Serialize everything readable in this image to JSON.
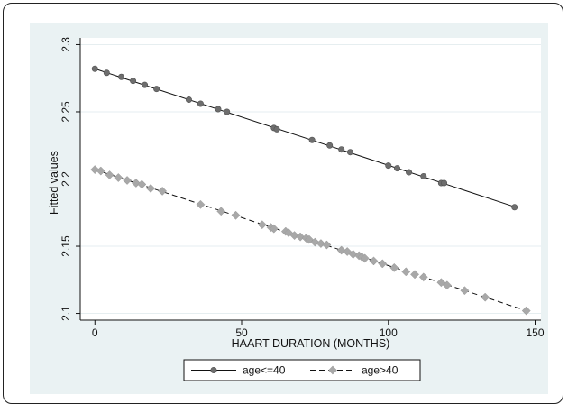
{
  "chart_data": {
    "type": "line",
    "title": "",
    "xlabel": "HAART DURATION (MONTHS)",
    "ylabel": "Fitted values",
    "xlim": [
      -5,
      152
    ],
    "ylim": [
      2.095,
      2.305
    ],
    "xticks": [
      0,
      50,
      100,
      150
    ],
    "yticks": [
      2.1,
      2.15,
      2.2,
      2.25,
      2.3
    ],
    "xtick_labels": [
      "0",
      "50",
      "100",
      "150"
    ],
    "ytick_labels": [
      "2.1",
      "2.15",
      "2.2",
      "2.25",
      "2.3"
    ],
    "grid": "horizontal",
    "legend_position": "bottom",
    "series": [
      {
        "name": "age<=40",
        "line_style": "solid",
        "marker": "circle",
        "color": "#111111",
        "marker_color": "#6e6e6e",
        "intercept": 2.282,
        "slope": -0.000718,
        "x": [
          0,
          4,
          9,
          13,
          17,
          21,
          32,
          36,
          42,
          45,
          61,
          62,
          74,
          80,
          84,
          87,
          100,
          103,
          107,
          112,
          118,
          119,
          143
        ],
        "y": [
          2.282,
          2.279,
          2.276,
          2.273,
          2.27,
          2.267,
          2.259,
          2.256,
          2.252,
          2.25,
          2.238,
          2.237,
          2.229,
          2.225,
          2.222,
          2.22,
          2.21,
          2.208,
          2.205,
          2.202,
          2.197,
          2.197,
          2.179
        ]
      },
      {
        "name": "age>40",
        "line_style": "dashed",
        "marker": "diamond",
        "color": "#111111",
        "marker_color": "#a8a8a8",
        "intercept": 2.207,
        "slope": -0.000714,
        "x": [
          0,
          2,
          5,
          8,
          11,
          14,
          16,
          19,
          23,
          36,
          43,
          48,
          57,
          60,
          61,
          65,
          66,
          68,
          70,
          72,
          73,
          75,
          77,
          79,
          84,
          86,
          88,
          90,
          91,
          92,
          95,
          98,
          102,
          106,
          109,
          112,
          118,
          120,
          126,
          133,
          147
        ],
        "y": [
          2.207,
          2.206,
          2.203,
          2.201,
          2.199,
          2.197,
          2.196,
          2.193,
          2.191,
          2.181,
          2.176,
          2.173,
          2.166,
          2.164,
          2.163,
          2.161,
          2.16,
          2.158,
          2.157,
          2.156,
          2.155,
          2.153,
          2.152,
          2.151,
          2.147,
          2.146,
          2.144,
          2.143,
          2.142,
          2.141,
          2.139,
          2.137,
          2.134,
          2.131,
          2.129,
          2.127,
          2.123,
          2.121,
          2.117,
          2.112,
          2.102
        ]
      }
    ]
  }
}
